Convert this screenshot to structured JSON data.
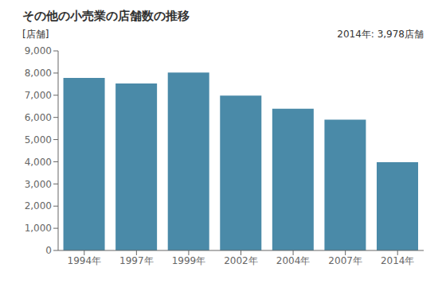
{
  "chart_data": {
    "type": "bar",
    "title": "その他の小売業の店舗数の推移",
    "ylabel": "[店舗]",
    "annotation": "2014年: 3,978店舗",
    "categories": [
      "1994年",
      "1997年",
      "1999年",
      "2002年",
      "2004年",
      "2007年",
      "2014年"
    ],
    "values": [
      7780,
      7530,
      8020,
      6980,
      6390,
      5900,
      3978
    ],
    "color": "#4a8aa8",
    "ylim": [
      0,
      9000
    ],
    "yticks": [
      0,
      {
        "value": 1000,
        "label": "1,000"
      },
      {
        "value": 2000,
        "label": "2,000"
      },
      {
        "value": 3000,
        "label": "3,000"
      },
      {
        "value": 4000,
        "label": "4,000"
      },
      {
        "value": 5000,
        "label": "5,000"
      },
      {
        "value": 6000,
        "label": "6,000"
      },
      {
        "value": 7000,
        "label": "7,000"
      },
      {
        "value": 8000,
        "label": "8,000"
      },
      {
        "value": 9000,
        "label": "9,000"
      }
    ],
    "grid": false
  }
}
